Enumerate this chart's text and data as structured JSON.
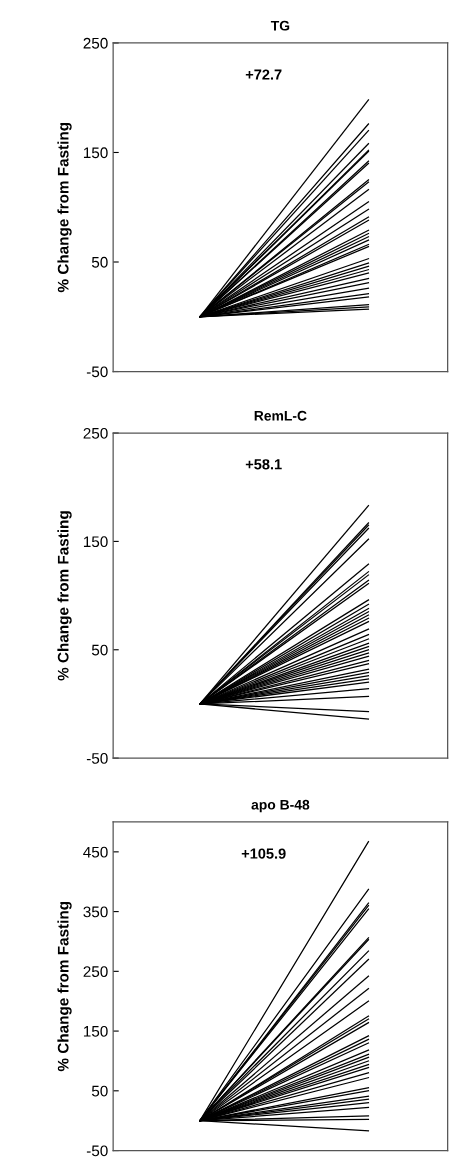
{
  "chart_data": [
    {
      "type": "line",
      "title": "TG",
      "ylabel": "% Change from Fasting",
      "annotations": [
        "+72.7"
      ],
      "categories": [
        null,
        null
      ],
      "ylim": [
        -50,
        250
      ],
      "yticks": [
        -50,
        50,
        150,
        250
      ],
      "grid": false,
      "marker": "none",
      "line_style": "solid",
      "tick_labels": "y",
      "series": [
        {
          "color": "#000000",
          "values": [
            0,
            198
          ]
        },
        {
          "color": "#000000",
          "values": [
            0,
            176
          ]
        },
        {
          "color": "#000000",
          "values": [
            0,
            170
          ]
        },
        {
          "color": "#000000",
          "values": [
            0,
            158
          ]
        },
        {
          "color": "#000000",
          "values": [
            0,
            152
          ]
        },
        {
          "color": "#000000",
          "values": [
            0,
            151
          ]
        },
        {
          "color": "#000000",
          "values": [
            0,
            142
          ]
        },
        {
          "color": "#000000",
          "values": [
            0,
            140
          ]
        },
        {
          "color": "#000000",
          "values": [
            0,
            125
          ]
        },
        {
          "color": "#000000",
          "values": [
            0,
            123
          ]
        },
        {
          "color": "#000000",
          "values": [
            0,
            116
          ]
        },
        {
          "color": "#000000",
          "values": [
            0,
            105
          ]
        },
        {
          "color": "#000000",
          "values": [
            0,
            98
          ]
        },
        {
          "color": "#000000",
          "values": [
            0,
            91
          ]
        },
        {
          "color": "#000000",
          "values": [
            0,
            88
          ]
        },
        {
          "color": "#000000",
          "values": [
            0,
            79
          ]
        },
        {
          "color": "#000000",
          "values": [
            0,
            76
          ]
        },
        {
          "color": "#000000",
          "values": [
            0,
            73
          ]
        },
        {
          "color": "#000000",
          "values": [
            0,
            70
          ]
        },
        {
          "color": "#000000",
          "values": [
            0,
            66
          ]
        },
        {
          "color": "#000000",
          "values": [
            0,
            64
          ]
        },
        {
          "color": "#000000",
          "values": [
            0,
            53
          ]
        },
        {
          "color": "#000000",
          "values": [
            0,
            49
          ]
        },
        {
          "color": "#000000",
          "values": [
            0,
            46
          ]
        },
        {
          "color": "#000000",
          "values": [
            0,
            43
          ]
        },
        {
          "color": "#000000",
          "values": [
            0,
            40
          ]
        },
        {
          "color": "#000000",
          "values": [
            0,
            35
          ]
        },
        {
          "color": "#000000",
          "values": [
            0,
            31
          ]
        },
        {
          "color": "#000000",
          "values": [
            0,
            26
          ]
        },
        {
          "color": "#000000",
          "values": [
            0,
            21
          ]
        },
        {
          "color": "#000000",
          "values": [
            0,
            18
          ]
        },
        {
          "color": "#000000",
          "values": [
            0,
            11
          ]
        },
        {
          "color": "#000000",
          "values": [
            0,
            9
          ]
        },
        {
          "color": "#000000",
          "values": [
            0,
            7
          ]
        }
      ]
    },
    {
      "type": "line",
      "title": "RemL-C",
      "ylabel": "% Change from Fasting",
      "annotations": [
        "+58.1"
      ],
      "categories": [
        null,
        null
      ],
      "ylim": [
        -50,
        250
      ],
      "yticks": [
        -50,
        50,
        150,
        250
      ],
      "grid": false,
      "marker": "none",
      "line_style": "solid",
      "tick_labels": "y",
      "series": [
        {
          "color": "#000000",
          "values": [
            0,
            183
          ]
        },
        {
          "color": "#000000",
          "values": [
            0,
            167
          ]
        },
        {
          "color": "#000000",
          "values": [
            0,
            165
          ]
        },
        {
          "color": "#000000",
          "values": [
            0,
            162
          ]
        },
        {
          "color": "#000000",
          "values": [
            0,
            152
          ]
        },
        {
          "color": "#000000",
          "values": [
            0,
            129
          ]
        },
        {
          "color": "#000000",
          "values": [
            0,
            122
          ]
        },
        {
          "color": "#000000",
          "values": [
            0,
            119
          ]
        },
        {
          "color": "#000000",
          "values": [
            0,
            114
          ]
        },
        {
          "color": "#000000",
          "values": [
            0,
            111
          ]
        },
        {
          "color": "#000000",
          "values": [
            0,
            96
          ]
        },
        {
          "color": "#000000",
          "values": [
            0,
            92
          ]
        },
        {
          "color": "#000000",
          "values": [
            0,
            88
          ]
        },
        {
          "color": "#000000",
          "values": [
            0,
            85
          ]
        },
        {
          "color": "#000000",
          "values": [
            0,
            82
          ]
        },
        {
          "color": "#000000",
          "values": [
            0,
            79
          ]
        },
        {
          "color": "#000000",
          "values": [
            0,
            76
          ]
        },
        {
          "color": "#000000",
          "values": [
            0,
            69
          ]
        },
        {
          "color": "#000000",
          "values": [
            0,
            64
          ]
        },
        {
          "color": "#000000",
          "values": [
            0,
            60
          ]
        },
        {
          "color": "#000000",
          "values": [
            0,
            56
          ]
        },
        {
          "color": "#000000",
          "values": [
            0,
            53
          ]
        },
        {
          "color": "#000000",
          "values": [
            0,
            50
          ]
        },
        {
          "color": "#000000",
          "values": [
            0,
            47
          ]
        },
        {
          "color": "#000000",
          "values": [
            0,
            44
          ]
        },
        {
          "color": "#000000",
          "values": [
            0,
            40
          ]
        },
        {
          "color": "#000000",
          "values": [
            0,
            37
          ]
        },
        {
          "color": "#000000",
          "values": [
            0,
            32
          ]
        },
        {
          "color": "#000000",
          "values": [
            0,
            29
          ]
        },
        {
          "color": "#000000",
          "values": [
            0,
            26
          ]
        },
        {
          "color": "#000000",
          "values": [
            0,
            23
          ]
        },
        {
          "color": "#000000",
          "values": [
            0,
            20
          ]
        },
        {
          "color": "#000000",
          "values": [
            0,
            14
          ]
        },
        {
          "color": "#000000",
          "values": [
            0,
            7
          ]
        },
        {
          "color": "#000000",
          "values": [
            0,
            -7
          ]
        },
        {
          "color": "#000000",
          "values": [
            0,
            -14
          ]
        }
      ]
    },
    {
      "type": "line",
      "title": "apo B-48",
      "ylabel": "% Change from Fasting",
      "annotations": [
        "+105.9"
      ],
      "categories": [
        null,
        null
      ],
      "ylim": [
        -50,
        500
      ],
      "yticks": [
        -50,
        50,
        150,
        250,
        350,
        450
      ],
      "grid": false,
      "marker": "none",
      "line_style": "solid",
      "tick_labels": "y",
      "series": [
        {
          "color": "#000000",
          "values": [
            0,
            467
          ]
        },
        {
          "color": "#000000",
          "values": [
            0,
            387
          ]
        },
        {
          "color": "#000000",
          "values": [
            0,
            364
          ]
        },
        {
          "color": "#000000",
          "values": [
            0,
            360
          ]
        },
        {
          "color": "#000000",
          "values": [
            0,
            354
          ]
        },
        {
          "color": "#000000",
          "values": [
            0,
            306
          ]
        },
        {
          "color": "#000000",
          "values": [
            0,
            303
          ]
        },
        {
          "color": "#000000",
          "values": [
            0,
            284
          ]
        },
        {
          "color": "#000000",
          "values": [
            0,
            270
          ]
        },
        {
          "color": "#000000",
          "values": [
            0,
            242
          ]
        },
        {
          "color": "#000000",
          "values": [
            0,
            221
          ]
        },
        {
          "color": "#000000",
          "values": [
            0,
            200
          ]
        },
        {
          "color": "#000000",
          "values": [
            0,
            175
          ]
        },
        {
          "color": "#000000",
          "values": [
            0,
            170
          ]
        },
        {
          "color": "#000000",
          "values": [
            0,
            164
          ]
        },
        {
          "color": "#000000",
          "values": [
            0,
            142
          ]
        },
        {
          "color": "#000000",
          "values": [
            0,
            136
          ]
        },
        {
          "color": "#000000",
          "values": [
            0,
            130
          ]
        },
        {
          "color": "#000000",
          "values": [
            0,
            118
          ]
        },
        {
          "color": "#000000",
          "values": [
            0,
            111
          ]
        },
        {
          "color": "#000000",
          "values": [
            0,
            106
          ]
        },
        {
          "color": "#000000",
          "values": [
            0,
            100
          ]
        },
        {
          "color": "#000000",
          "values": [
            0,
            94
          ]
        },
        {
          "color": "#000000",
          "values": [
            0,
            89
          ]
        },
        {
          "color": "#000000",
          "values": [
            0,
            80
          ]
        },
        {
          "color": "#000000",
          "values": [
            0,
            72
          ]
        },
        {
          "color": "#000000",
          "values": [
            0,
            55
          ]
        },
        {
          "color": "#000000",
          "values": [
            0,
            50
          ]
        },
        {
          "color": "#000000",
          "values": [
            0,
            41
          ]
        },
        {
          "color": "#000000",
          "values": [
            0,
            36
          ]
        },
        {
          "color": "#000000",
          "values": [
            0,
            30
          ]
        },
        {
          "color": "#000000",
          "values": [
            0,
            22
          ]
        },
        {
          "color": "#000000",
          "values": [
            0,
            8
          ]
        },
        {
          "color": "#000000",
          "values": [
            0,
            2
          ]
        },
        {
          "color": "#000000",
          "values": [
            0,
            -17
          ]
        }
      ]
    }
  ]
}
